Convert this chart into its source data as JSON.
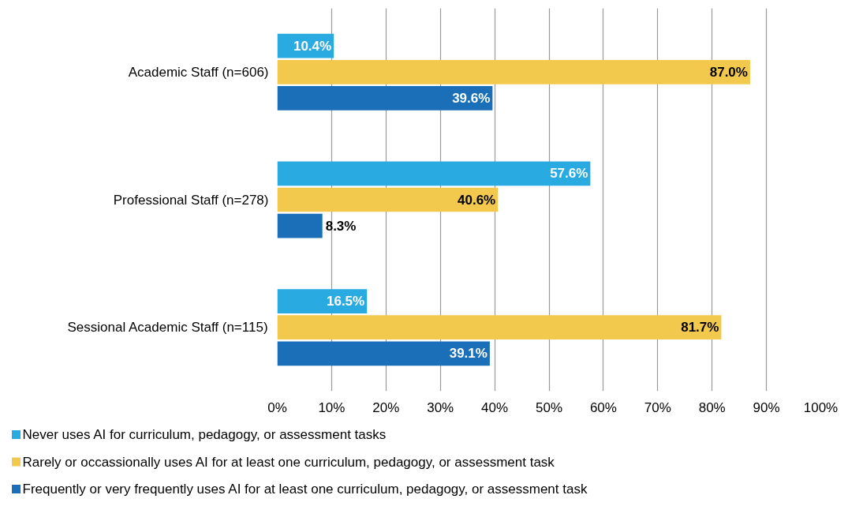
{
  "chart_data": {
    "type": "bar",
    "orientation": "horizontal",
    "categories": [
      "Academic Staff (n=606)",
      "Professional Staff (n=278)",
      "Sessional Academic Staff (n=115)"
    ],
    "series": [
      {
        "name": "Never uses AI for curriculum, pedagogy, or assessment tasks",
        "color": "#29abe2",
        "values": [
          10.4,
          57.6,
          16.5
        ]
      },
      {
        "name": "Rarely or occassionally uses AI for at least one curriculum, pedagogy, or assessment task",
        "color": "#f2c94c",
        "values": [
          87.0,
          40.6,
          81.7
        ]
      },
      {
        "name": "Frequently or very frequently uses AI for at least one curriculum, pedagogy, or assessment task",
        "color": "#1b6fb8",
        "values": [
          39.6,
          8.3,
          39.1
        ]
      }
    ],
    "value_labels": [
      [
        "10.4%",
        "57.6%",
        "16.5%"
      ],
      [
        "87.0%",
        "40.6%",
        "81.7%"
      ],
      [
        "39.6%",
        "8.3%",
        "39.1%"
      ]
    ],
    "xlim": [
      0,
      100
    ],
    "xticks": [
      {
        "value": 0,
        "label": "0%"
      },
      {
        "value": 10,
        "label": "10%"
      },
      {
        "value": 20,
        "label": "20%"
      },
      {
        "value": 30,
        "label": "30%"
      },
      {
        "value": 40,
        "label": "40%"
      },
      {
        "value": 50,
        "label": "50%"
      },
      {
        "value": 60,
        "label": "60%"
      },
      {
        "value": 70,
        "label": "70%"
      },
      {
        "value": 80,
        "label": "80%"
      },
      {
        "value": 90,
        "label": "90%"
      },
      {
        "value": 100,
        "label": "100%"
      }
    ],
    "grid": "x",
    "legend": "bottom"
  }
}
